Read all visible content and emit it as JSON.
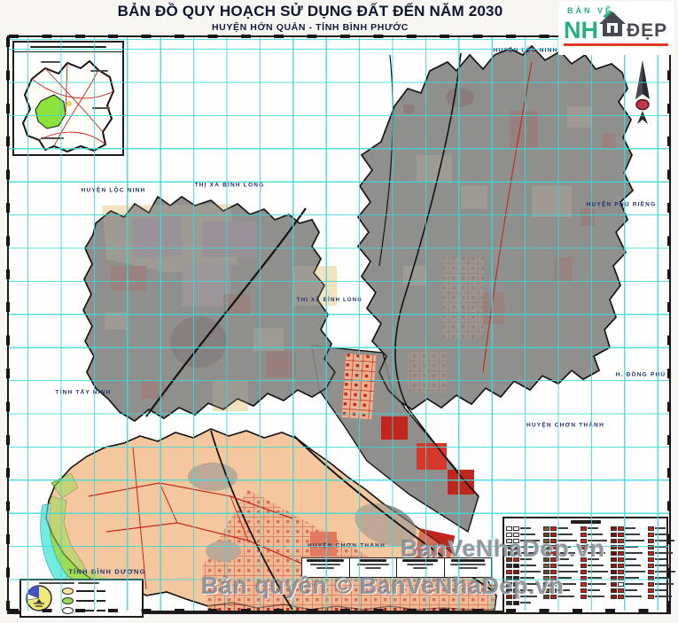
{
  "header": {
    "title": "BẢN ĐỒ QUY HOẠCH SỬ DỤNG ĐẤT ĐẾN NĂM 2030",
    "subtitle": "HUYỆN HỚN QUẢN - TỈNH BÌNH PHƯỚC"
  },
  "logo": {
    "top_text": "BẢN VẼ",
    "main_text": "NH",
    "right_text": "ĐẸP",
    "green": "#27b183",
    "dark": "#454b52",
    "underline_color": "#e2362b",
    "house_icon": "house-icon"
  },
  "map": {
    "grid_color": "#3cd8d8",
    "label_color": "#22316e",
    "labels": [
      "HUYỆN LỘC NINH",
      "THỊ XÃ BÌNH LONG",
      "HUYỆN LỘC NINH",
      "HUYỆN PHÚ RIỀNG",
      "THỊ XÃ BÌNH LONG",
      "H. ĐỒNG PHÚ",
      "HUYỆN CHƠN THÀNH",
      "TỈNH TÂY NINH",
      "TỈNH BÌNH DƯƠNG",
      "HUYỆN CHƠN THÀNH"
    ],
    "region_colors": {
      "base_gray": "#8f8f8d",
      "agriculture_peach": "#f4c79e",
      "planning_red": "#c3261c",
      "residential_cream": "#f3e2c0",
      "mixed_pink": "#d5aede",
      "dark_maroon": "#5f2a38",
      "forest_green": "#9edc52",
      "water_cyan": "#74ebe2"
    },
    "inset_highlight_color": "#8ce33c",
    "north_arrow_icon": "north-arrow-icon"
  },
  "watermarks": {
    "center": "BanVeNhaDep.vn",
    "bottom": "Bản quyền © BanVeNhaDep.vn"
  },
  "legend": {
    "groups": [
      {
        "sw": [
          [
            "#ffffff",
            "#ffffff"
          ],
          [
            "#ffffff",
            "#e8e8e8"
          ],
          [
            "#d9d9d9",
            "#ffffff"
          ],
          [
            "#5a4a2e",
            "#2e2e2e"
          ],
          [
            "#1f1f1f",
            "#3d3d3d"
          ],
          [
            "#74281c",
            "#c5201a"
          ],
          [
            "#2a2a2a",
            "#1a1a1a"
          ],
          [
            "#c5201a",
            "#8e1410"
          ],
          [
            "#3a3a3a",
            "#222222"
          ],
          [
            "#6e6e6e",
            "#2f2f2f"
          ],
          [
            "#1a1a1a",
            "#444444"
          ],
          [
            "#8e1410",
            "#c5201a"
          ],
          [
            "#2b2b2b",
            "#161616"
          ]
        ]
      },
      {
        "sw": [
          [
            "#6f652f",
            "#c5201a"
          ],
          [
            "#4f4a20",
            "#b51a14"
          ],
          [
            "#6f652f",
            "#c5201a"
          ],
          [
            "#3f3a18",
            "#d0281f"
          ],
          [
            "#6f652f",
            "#c5201a"
          ],
          [
            "#57511f",
            "#b51a14"
          ],
          [
            "#6f652f",
            "#c5201a"
          ],
          [
            "#4f4a20",
            "#c5201a"
          ],
          [
            "#6f652f",
            "#d0281f"
          ],
          [
            "#57511f",
            "#c5201a"
          ],
          [
            "#6f652f",
            "#b51a14"
          ],
          [
            "#4f4a20",
            "#c5201a"
          ]
        ]
      },
      {
        "sw": [
          [
            "#c5201a"
          ],
          [
            "#c5201a"
          ],
          [
            "#d0281f"
          ],
          [
            "#c5201a"
          ],
          [
            "#ffffff"
          ],
          [
            "#c5201a"
          ],
          [
            "#b51a14"
          ],
          [
            "#c5201a"
          ],
          [
            "#c5201a"
          ],
          [
            "#d0281f"
          ],
          [
            "#c5201a"
          ],
          [
            "#c5201a"
          ]
        ]
      },
      {
        "sw": [
          [
            "#8e1410",
            "#c5201a"
          ],
          [
            "#7a100c",
            "#c5201a"
          ],
          [
            "#8e1410",
            "#d0281f"
          ],
          [
            "#8e1410",
            "#c5201a"
          ],
          [
            "#6e0d09",
            "#b51a14"
          ],
          [
            "#8e1410",
            "#c5201a"
          ],
          [
            "#8e1410",
            "#c5201a"
          ],
          [
            "#7a100c",
            "#d0281f"
          ],
          [
            "#8e1410",
            "#c5201a"
          ],
          [
            "#8e1410",
            "#ffffff"
          ],
          [
            "#7a100c",
            "#c5201a"
          ],
          [
            "#8e1410",
            "#c5201a"
          ]
        ]
      },
      {
        "sw": [
          [
            "#c5201a"
          ],
          [
            "#d0281f"
          ],
          [
            "#c5201a"
          ],
          [
            "#b51a14"
          ],
          [
            "#c5201a"
          ],
          [
            "#c5201a"
          ],
          [
            "#d0281f"
          ],
          [
            "#c5201a"
          ],
          [
            "#b51a14"
          ],
          [
            "#c5201a"
          ],
          [
            "#c5201a"
          ],
          [
            "#d0281f"
          ]
        ]
      }
    ]
  }
}
